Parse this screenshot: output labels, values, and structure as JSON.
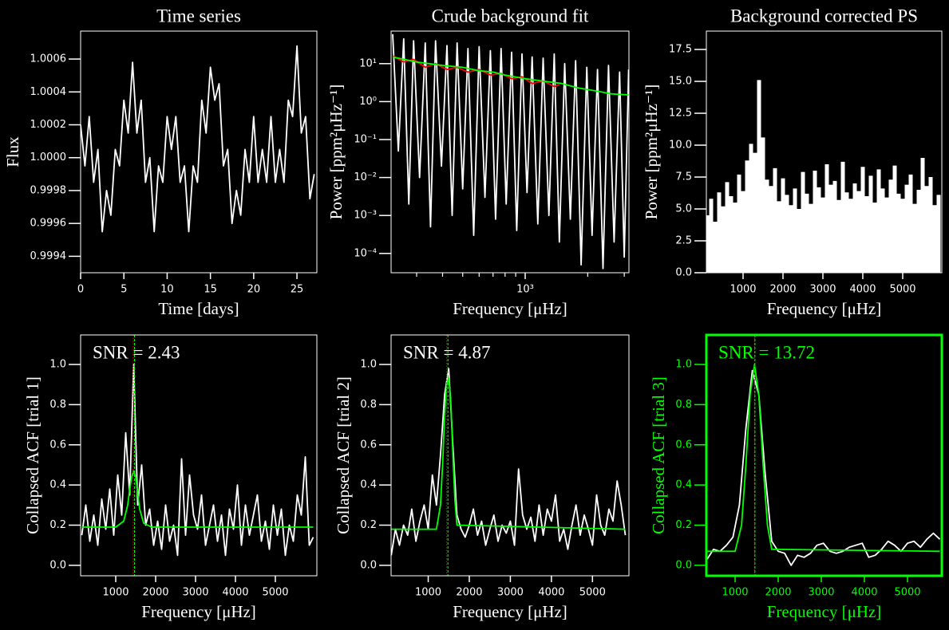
{
  "chart_data": [
    {
      "type": "line",
      "title": "Time series",
      "xlabel": "Time [days]",
      "ylabel": "Flux",
      "xlim": [
        0,
        27.3
      ],
      "ylim": [
        0.9993,
        1.00077
      ],
      "xticks": [
        0,
        5,
        10,
        15,
        20,
        25
      ],
      "yticks": [
        0.9994,
        0.9996,
        0.9998,
        {
          "value": 1.0,
          "label": "1.0000"
        },
        1.0002,
        1.0004,
        1.0006
      ],
      "series": [
        {
          "color": "#ffffff",
          "x": [
            0,
            0.5,
            1,
            1.5,
            2,
            2.5,
            3,
            3.5,
            4,
            4.5,
            5,
            5.5,
            6,
            6.5,
            7,
            7.5,
            8,
            8.5,
            9,
            9.5,
            10,
            10.5,
            11,
            11.5,
            12,
            12.5,
            13,
            13.5,
            14,
            14.5,
            15,
            15.5,
            16,
            16.5,
            17,
            17.5,
            18,
            18.5,
            19,
            19.5,
            20,
            20.5,
            21,
            21.5,
            22,
            22.5,
            23,
            23.5,
            24,
            24.5,
            25,
            25.5,
            26,
            26.5,
            27
          ],
          "values": [
            1.0002,
            0.99995,
            1.00025,
            0.99985,
            1.00005,
            0.99955,
            0.9998,
            0.99965,
            1.00005,
            0.99995,
            1.00035,
            1.00015,
            1.00058,
            1.00015,
            1.00035,
            0.99985,
            1.0,
            0.99955,
            0.99995,
            0.99985,
            1.00025,
            1.00005,
            1.00025,
            0.99985,
            0.99995,
            0.99955,
            0.99995,
            0.99985,
            1.00035,
            1.00015,
            1.00055,
            1.00035,
            1.00045,
            0.99995,
            1.00005,
            0.9996,
            0.9998,
            0.99965,
            1.00005,
            0.99985,
            1.00025,
            0.99985,
            1.00005,
            0.99985,
            1.00025,
            0.99985,
            1.00005,
            0.99985,
            1.00035,
            1.00025,
            1.00068,
            1.00015,
            1.00025,
            0.99975,
            0.9999
          ]
        }
      ]
    },
    {
      "type": "line",
      "title": "Crude background fit",
      "xlabel": "Frequency [μHz]",
      "ylabel": "Power [ppm²μHz⁻¹]",
      "xlog": true,
      "ylog": true,
      "xlim": [
        226,
        3160
      ],
      "ylim": [
        3.1e-05,
        72
      ],
      "xticks": [
        {
          "value": 1000,
          "label": "10³"
        }
      ],
      "xminorticks": [
        300,
        400,
        500,
        600,
        700,
        800,
        900,
        2000,
        3000
      ],
      "yticks": [
        {
          "value": 0.0001,
          "label": "10⁻⁴"
        },
        {
          "value": 0.001,
          "label": "10⁻³"
        },
        {
          "value": 0.01,
          "label": "10⁻²"
        },
        {
          "value": 0.1,
          "label": "10⁻¹"
        },
        {
          "value": 1,
          "label": "10⁰"
        },
        {
          "value": 10,
          "label": "10¹"
        }
      ],
      "series": [
        {
          "color": "#ffffff",
          "x": [
            230,
            245,
            260,
            275,
            290,
            310,
            330,
            350,
            370,
            395,
            420,
            445,
            470,
            500,
            530,
            565,
            600,
            640,
            680,
            720,
            765,
            810,
            860,
            910,
            965,
            1020,
            1080,
            1150,
            1220,
            1300,
            1380,
            1460,
            1550,
            1650,
            1750,
            1860,
            1980,
            2100,
            2230,
            2370,
            2520,
            2680,
            2850,
            3000,
            3150
          ],
          "values": [
            60,
            0.05,
            45,
            0.002,
            40,
            0.01,
            35,
            0.0005,
            40,
            0.02,
            30,
            0.001,
            35,
            0.005,
            25,
            0.0003,
            28,
            0.003,
            22,
            0.0008,
            25,
            0.002,
            20,
            0.0004,
            18,
            0.004,
            15,
            0.0006,
            14,
            0.001,
            18,
            0.0002,
            10,
            0.0008,
            12,
            5e-05,
            8,
            0.0003,
            7,
            4e-05,
            9,
            0.0002,
            6,
            8e-05,
            7
          ]
        },
        {
          "color": "#ff0000",
          "x": [
            230,
            260,
            290,
            330,
            370,
            420,
            470,
            530,
            600,
            680,
            765,
            860,
            965,
            1080,
            1220,
            1380,
            1460
          ],
          "values": [
            16,
            11,
            13,
            8,
            10,
            7,
            8,
            6,
            7,
            5,
            5.5,
            4,
            4.5,
            3,
            3.5,
            2.5,
            2.8
          ]
        },
        {
          "color": "#00ff00",
          "x": [
            230,
            300,
            400,
            500,
            600,
            700,
            800,
            1000,
            1200,
            1500,
            1800,
            2200,
            2600,
            3150
          ],
          "values": [
            15,
            11,
            9,
            8,
            6.5,
            6,
            5,
            4,
            3.5,
            3,
            2.3,
            1.9,
            1.6,
            1.5
          ]
        }
      ]
    },
    {
      "type": "stem",
      "title": "Background corrected PS",
      "xlabel": "Frequency [μHz]",
      "ylabel": "Power [ppm²μHz⁻¹]",
      "xlim": [
        80,
        5980
      ],
      "ylim": [
        0,
        18.94
      ],
      "xticks": [
        1000,
        2000,
        3000,
        4000,
        5000
      ],
      "yticks": [
        {
          "value": 0,
          "label": "0.0"
        },
        2.5,
        {
          "value": 5,
          "label": "5.0"
        },
        7.5,
        {
          "value": 10,
          "label": "10.0"
        },
        12.5,
        {
          "value": 15,
          "label": "15.0"
        },
        17.5
      ],
      "series": [
        {
          "color": "#ffffff",
          "x": [
            100,
            200,
            300,
            400,
            500,
            600,
            700,
            800,
            900,
            1000,
            1100,
            1200,
            1300,
            1400,
            1500,
            1600,
            1700,
            1800,
            1900,
            2000,
            2100,
            2200,
            2300,
            2400,
            2500,
            2600,
            2700,
            2800,
            2900,
            3000,
            3100,
            3200,
            3300,
            3400,
            3500,
            3600,
            3700,
            3800,
            3900,
            4000,
            4100,
            4200,
            4300,
            4400,
            4500,
            4600,
            4700,
            4800,
            4900,
            5000,
            5100,
            5200,
            5300,
            5400,
            5500,
            5600,
            5700,
            5800,
            5900
          ],
          "values": [
            4.5,
            5.8,
            4.0,
            6.3,
            5.2,
            7.1,
            6.0,
            5.5,
            7.7,
            6.4,
            8.8,
            10.1,
            9.4,
            15.1,
            10.6,
            7.3,
            6.8,
            8.2,
            5.6,
            7.4,
            6.1,
            5.3,
            6.6,
            5.0,
            7.9,
            6.2,
            5.4,
            8.0,
            6.7,
            5.9,
            8.5,
            6.9,
            7.2,
            5.7,
            8.7,
            6.3,
            5.8,
            7.0,
            6.4,
            8.3,
            6.0,
            7.6,
            5.5,
            8.1,
            6.6,
            5.9,
            7.3,
            8.4,
            6.2,
            5.8,
            6.9,
            7.7,
            5.4,
            6.5,
            9.0,
            6.8,
            7.5,
            5.3,
            6.1
          ]
        }
      ]
    },
    {
      "type": "line",
      "xlabel": "Frequency [μHz]",
      "ylabel": "Collapsed ACF [trial 1]",
      "annotation": "SNR = 2.43",
      "xlim": [
        120,
        6040
      ],
      "ylim": [
        -0.052,
        1.147
      ],
      "xticks": [
        1000,
        2000,
        3000,
        4000,
        5000
      ],
      "yticks": [
        {
          "value": 0,
          "label": "0.0"
        },
        0.2,
        0.4,
        0.6,
        0.8,
        {
          "value": 1,
          "label": "1.0"
        }
      ],
      "vlines": [
        {
          "x": 1440,
          "color": "#ff0000",
          "style": "dotted"
        },
        {
          "x": 1470,
          "color": "#00ff00",
          "style": "dashed"
        }
      ],
      "series": [
        {
          "color": "#ffffff",
          "x": [
            150,
            250,
            350,
            450,
            550,
            650,
            750,
            850,
            950,
            1050,
            1150,
            1250,
            1350,
            1450,
            1550,
            1650,
            1750,
            1850,
            1950,
            2050,
            2150,
            2250,
            2350,
            2450,
            2550,
            2650,
            2750,
            2850,
            2950,
            3050,
            3150,
            3250,
            3350,
            3450,
            3550,
            3650,
            3750,
            3850,
            3950,
            4050,
            4150,
            4250,
            4350,
            4450,
            4550,
            4650,
            4750,
            4850,
            4950,
            5050,
            5150,
            5250,
            5350,
            5450,
            5550,
            5650,
            5750,
            5850,
            5950
          ],
          "values": [
            0.15,
            0.3,
            0.12,
            0.25,
            0.1,
            0.33,
            0.18,
            0.38,
            0.15,
            0.45,
            0.25,
            0.66,
            0.35,
            1.0,
            0.3,
            0.5,
            0.2,
            0.28,
            0.1,
            0.22,
            0.08,
            0.3,
            0.12,
            0.2,
            0.05,
            0.53,
            0.15,
            0.45,
            0.25,
            0.18,
            0.35,
            0.1,
            0.2,
            0.3,
            0.12,
            0.25,
            0.05,
            0.28,
            0.18,
            0.4,
            0.1,
            0.3,
            0.15,
            0.25,
            0.35,
            0.12,
            0.22,
            0.08,
            0.3,
            0.15,
            0.28,
            0.05,
            0.2,
            0.12,
            0.35,
            0.25,
            0.54,
            0.1,
            0.14
          ]
        },
        {
          "color": "#00ff00",
          "x": [
            150,
            1000,
            1200,
            1300,
            1350,
            1400,
            1450,
            1500,
            1550,
            1600,
            1700,
            1900,
            5950
          ],
          "values": [
            0.19,
            0.19,
            0.22,
            0.3,
            0.38,
            0.44,
            0.47,
            0.44,
            0.36,
            0.28,
            0.21,
            0.19,
            0.19
          ]
        }
      ]
    },
    {
      "type": "line",
      "xlabel": "Frequency [μHz]",
      "ylabel": "Collapsed ACF [trial 2]",
      "annotation": "SNR = 4.87",
      "xlim": [
        96,
        5888
      ],
      "ylim": [
        -0.052,
        1.147
      ],
      "xticks": [
        1000,
        2000,
        3000,
        4000,
        5000
      ],
      "yticks": [
        {
          "value": 0,
          "label": "0.0"
        },
        0.2,
        0.4,
        0.6,
        0.8,
        {
          "value": 1,
          "label": "1.0"
        }
      ],
      "vlines": [
        {
          "x": 1450,
          "color": "#ff0000",
          "style": "dotted"
        },
        {
          "x": 1480,
          "color": "#00ff00",
          "style": "dashed"
        }
      ],
      "series": [
        {
          "color": "#ffffff",
          "x": [
            100,
            200,
            300,
            400,
            500,
            600,
            700,
            800,
            900,
            1000,
            1100,
            1200,
            1300,
            1400,
            1500,
            1600,
            1700,
            1800,
            1900,
            2000,
            2100,
            2200,
            2300,
            2400,
            2500,
            2600,
            2700,
            2800,
            2900,
            3000,
            3100,
            3200,
            3300,
            3400,
            3500,
            3600,
            3700,
            3800,
            3900,
            4000,
            4100,
            4200,
            4300,
            4400,
            4500,
            4600,
            4700,
            4800,
            4900,
            5000,
            5100,
            5200,
            5300,
            5400,
            5500,
            5600,
            5700,
            5800
          ],
          "values": [
            0.05,
            0.18,
            0.1,
            0.2,
            0.15,
            0.28,
            0.12,
            0.22,
            0.3,
            0.18,
            0.45,
            0.3,
            0.55,
            0.85,
            0.98,
            0.6,
            0.25,
            0.18,
            0.14,
            0.2,
            0.28,
            0.15,
            0.22,
            0.1,
            0.18,
            0.25,
            0.12,
            0.2,
            0.16,
            0.22,
            0.1,
            0.48,
            0.25,
            0.18,
            0.24,
            0.12,
            0.3,
            0.15,
            0.28,
            0.22,
            0.35,
            0.12,
            0.18,
            0.08,
            0.2,
            0.3,
            0.15,
            0.25,
            0.18,
            0.1,
            0.35,
            0.2,
            0.15,
            0.28,
            0.22,
            0.42,
            0.3,
            0.15
          ]
        },
        {
          "color": "#00ff00",
          "x": [
            100,
            1200,
            1300,
            1350,
            1400,
            1450,
            1500,
            1550,
            1600,
            1650,
            1700,
            5800
          ],
          "values": [
            0.18,
            0.18,
            0.3,
            0.5,
            0.75,
            0.9,
            0.93,
            0.82,
            0.55,
            0.32,
            0.2,
            0.18
          ]
        }
      ]
    },
    {
      "type": "line",
      "xlabel": "Frequency [μHz]",
      "ylabel": "Collapsed ACF [trial 3]",
      "annotation": "SNR = 13.72",
      "axis_color": "#00ff00",
      "xlim": [
        333,
        5796
      ],
      "ylim": [
        -0.052,
        1.147
      ],
      "xticks": [
        1000,
        2000,
        3000,
        4000,
        5000
      ],
      "yticks": [
        {
          "value": 0,
          "label": "0.0"
        },
        0.2,
        0.4,
        0.6,
        0.8,
        {
          "value": 1,
          "label": "1.0"
        }
      ],
      "vlines": [
        {
          "x": 1450,
          "color": "#ff0000",
          "style": "dotted"
        },
        {
          "x": 1460,
          "color": "#00ff00",
          "style": "dashed"
        }
      ],
      "series": [
        {
          "color": "#ffffff",
          "x": [
            350,
            500,
            650,
            800,
            950,
            1100,
            1250,
            1400,
            1550,
            1700,
            1850,
            2000,
            2150,
            2300,
            2450,
            2600,
            2750,
            2900,
            3050,
            3200,
            3350,
            3500,
            3650,
            3800,
            3950,
            4100,
            4250,
            4400,
            4550,
            4700,
            4850,
            5000,
            5150,
            5300,
            5450,
            5600,
            5750
          ],
          "values": [
            0.03,
            0.08,
            0.07,
            0.1,
            0.14,
            0.3,
            0.68,
            0.97,
            0.85,
            0.45,
            0.12,
            0.07,
            0.06,
            0.0,
            0.05,
            0.04,
            0.06,
            0.1,
            0.11,
            0.07,
            0.06,
            0.07,
            0.09,
            0.1,
            0.11,
            0.04,
            0.05,
            0.08,
            0.12,
            0.1,
            0.07,
            0.11,
            0.12,
            0.09,
            0.13,
            0.16,
            0.13
          ]
        },
        {
          "color": "#00ff00",
          "x": [
            350,
            1000,
            1150,
            1250,
            1350,
            1450,
            1550,
            1650,
            1750,
            1850,
            5750
          ],
          "values": [
            0.07,
            0.07,
            0.2,
            0.5,
            0.85,
            1.0,
            0.85,
            0.5,
            0.2,
            0.08,
            0.07
          ]
        }
      ]
    }
  ]
}
